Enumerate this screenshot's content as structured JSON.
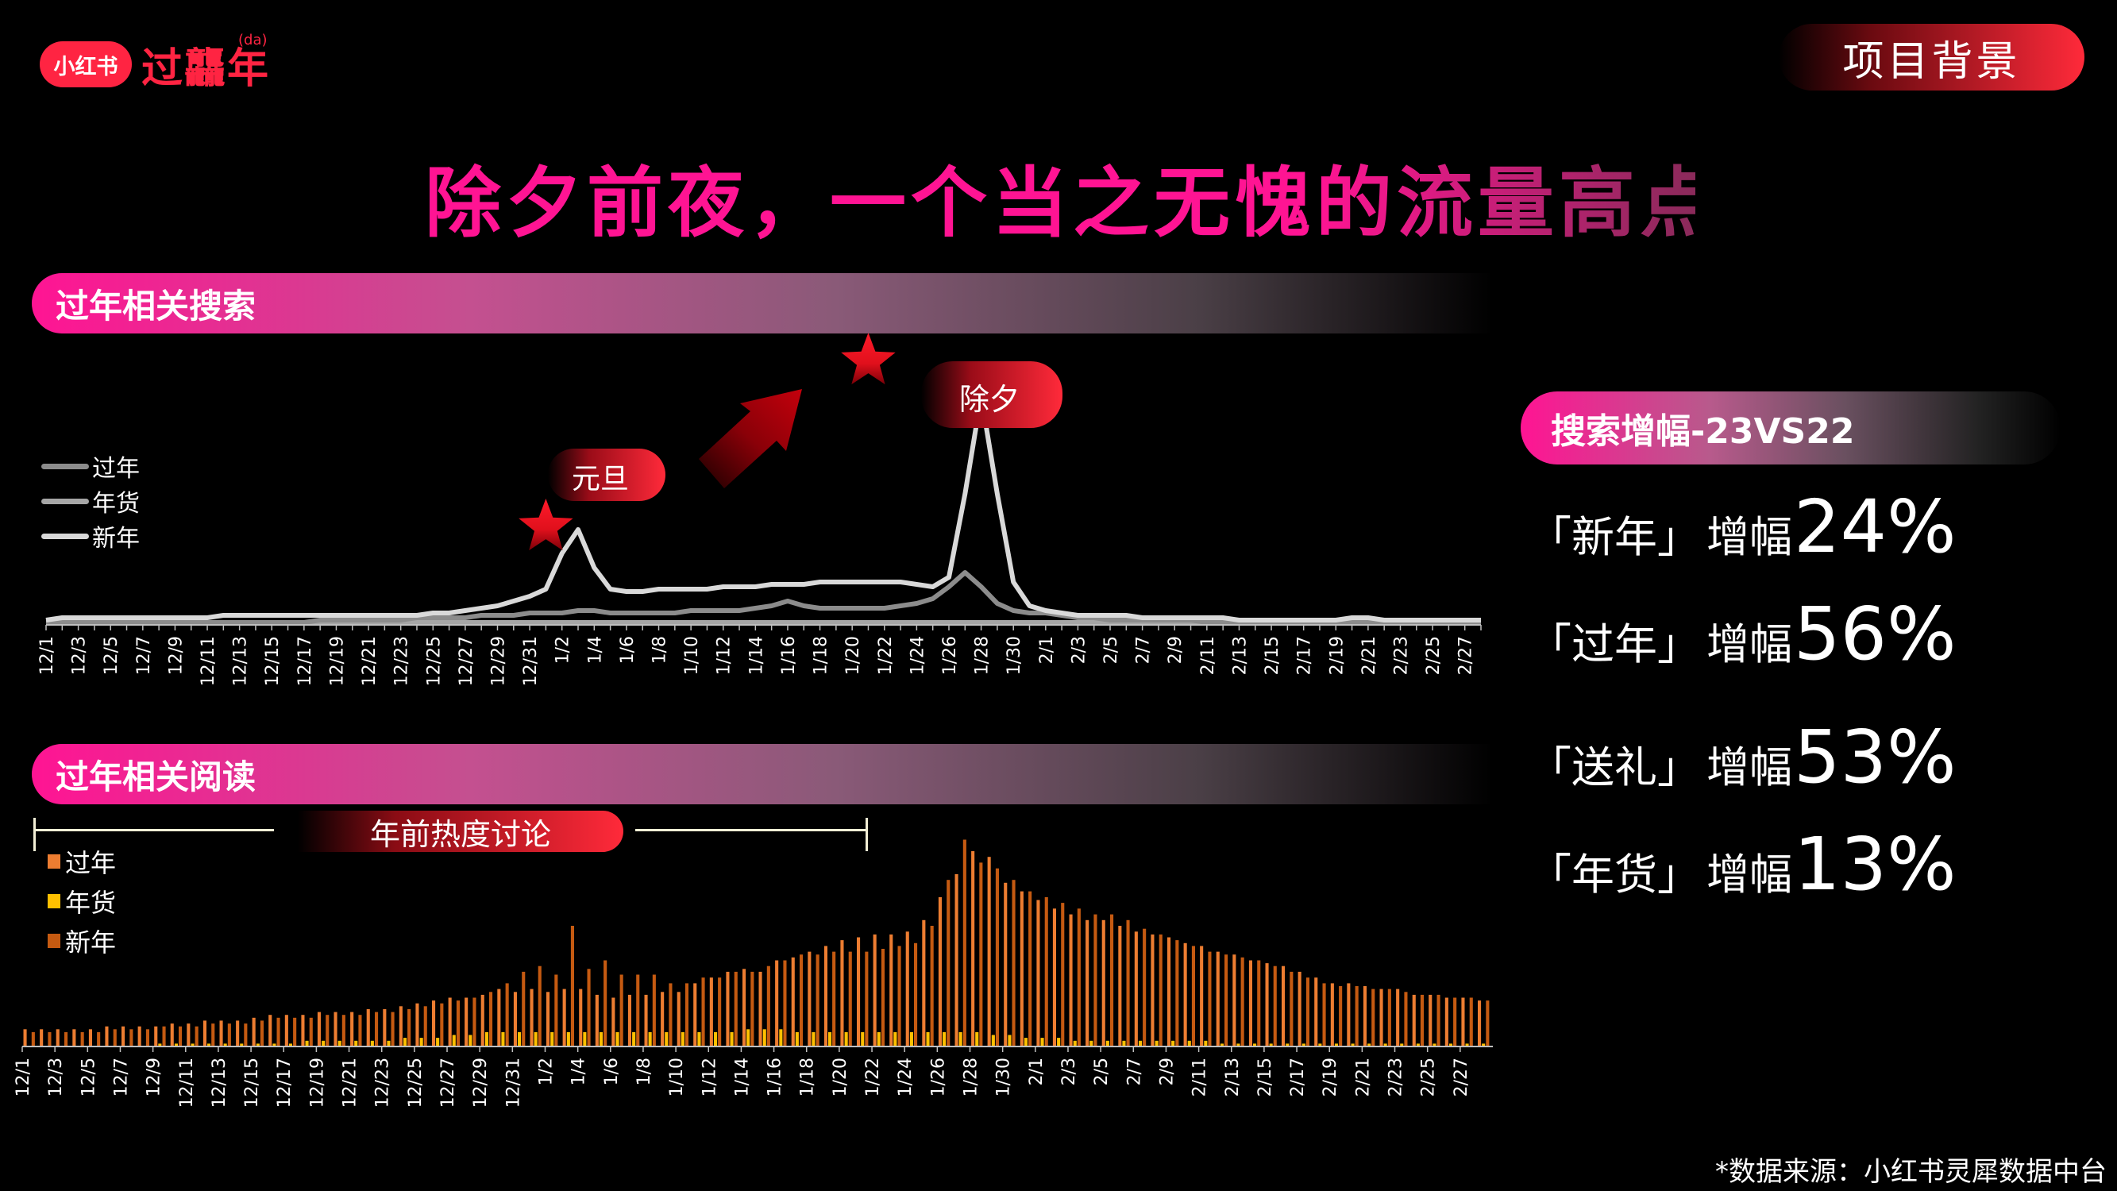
{
  "brand": {
    "logo_label": "小红书",
    "campaign_title": "过龘年",
    "campaign_sup": "(da)"
  },
  "section_tag": "项目背景",
  "page_title": "除夕前夜，一个当之无愧的流量高点",
  "search_section": {
    "heading": "过年相关搜索",
    "legend": [
      {
        "label": "过年",
        "color": "#8c8c8c"
      },
      {
        "label": "年货",
        "color": "#a6a6a6"
      },
      {
        "label": "新年",
        "color": "#d9d9d9"
      }
    ],
    "annotations": [
      {
        "label": "元旦",
        "star_at": "1/1"
      },
      {
        "label": "除夕",
        "star_at": "1/21"
      }
    ]
  },
  "reading_section": {
    "heading": "过年相关阅读",
    "bracket_label": "年前热度讨论",
    "legend": [
      {
        "label": "过年",
        "color": "#ed7d31"
      },
      {
        "label": "年货",
        "color": "#ffc000"
      },
      {
        "label": "新年",
        "color": "#c55a11"
      }
    ]
  },
  "stats": {
    "heading": "搜索增幅-23VS22",
    "keyword_suffix": "增幅",
    "rows": [
      {
        "label": "「新年」",
        "value": "24%"
      },
      {
        "label": "「过年」",
        "value": "56%"
      },
      {
        "label": "「送礼」",
        "value": "53%"
      },
      {
        "label": "「年货」",
        "value": "13%"
      }
    ]
  },
  "source_note": "*数据来源：小红书灵犀数据中台",
  "chart_data": [
    {
      "type": "line",
      "title": "过年相关搜索",
      "xlabel": "",
      "ylabel": "",
      "grid": false,
      "legend_position": "left",
      "x_tick_labels": [
        "12/1",
        "12/3",
        "12/5",
        "12/7",
        "12/9",
        "12/11",
        "12/13",
        "12/15",
        "12/17",
        "12/19",
        "12/21",
        "12/23",
        "12/25",
        "12/27",
        "12/29",
        "12/31",
        "1/2",
        "1/4",
        "1/6",
        "1/8",
        "1/10",
        "1/12",
        "1/14",
        "1/16",
        "1/18",
        "1/20",
        "1/22",
        "1/24",
        "1/26",
        "1/28",
        "1/30",
        "2/1",
        "2/3",
        "2/5",
        "2/7",
        "2/9",
        "2/11",
        "2/13",
        "2/15",
        "2/17",
        "2/19",
        "2/21",
        "2/23",
        "2/25",
        "2/27"
      ],
      "x_start": "12/1",
      "x_end": "2/28",
      "num_points": 90,
      "ylim": [
        0,
        100
      ],
      "series": [
        {
          "name": "新年",
          "color": "#d9d9d9",
          "values": [
            2,
            3,
            3,
            3,
            3,
            3,
            3,
            3,
            3,
            3,
            3,
            4,
            4,
            4,
            4,
            4,
            4,
            4,
            4,
            4,
            4,
            4,
            4,
            4,
            5,
            5,
            6,
            7,
            8,
            10,
            12,
            15,
            30,
            40,
            24,
            15,
            14,
            14,
            15,
            15,
            15,
            15,
            16,
            16,
            16,
            17,
            17,
            17,
            18,
            18,
            18,
            18,
            18,
            18,
            17,
            16,
            20,
            55,
            96,
            55,
            18,
            8,
            6,
            5,
            4,
            4,
            4,
            4,
            3,
            3,
            3,
            3,
            3,
            3,
            2,
            2,
            2,
            2,
            2,
            2,
            2,
            3,
            3,
            2,
            2,
            2,
            2,
            2,
            2,
            2
          ]
        },
        {
          "name": "过年",
          "color": "#8c8c8c",
          "values": [
            1,
            1,
            1,
            1,
            1,
            1,
            1,
            1,
            1,
            1,
            1,
            1,
            1,
            1,
            1,
            1,
            1,
            2,
            2,
            2,
            2,
            2,
            2,
            3,
            3,
            3,
            3,
            4,
            4,
            4,
            5,
            5,
            5,
            6,
            6,
            5,
            5,
            5,
            5,
            5,
            6,
            6,
            6,
            6,
            7,
            8,
            10,
            8,
            7,
            7,
            7,
            7,
            7,
            8,
            9,
            11,
            16,
            22,
            16,
            9,
            6,
            5,
            5,
            4,
            3,
            3,
            2,
            2,
            2,
            2,
            2,
            2,
            1,
            1,
            1,
            1,
            1,
            1,
            1,
            1,
            1,
            1,
            1,
            1,
            1,
            1,
            1,
            1,
            1,
            1
          ]
        },
        {
          "name": "年货",
          "color": "#a6a6a6",
          "values": [
            1,
            1,
            1,
            1,
            1,
            1,
            1,
            1,
            1,
            1,
            1,
            1,
            1,
            1,
            1,
            1,
            1,
            1,
            1,
            1,
            1,
            1,
            1,
            1,
            1,
            1,
            1,
            1,
            1,
            1,
            1,
            1,
            1,
            1,
            1,
            1,
            1,
            1,
            1,
            1,
            1,
            1,
            1,
            1,
            1,
            1,
            1,
            1,
            1,
            1,
            1,
            1,
            1,
            1,
            1,
            1,
            1,
            1,
            1,
            1,
            1,
            1,
            1,
            1,
            1,
            1,
            1,
            1,
            1,
            1,
            1,
            1,
            1,
            1,
            1,
            1,
            1,
            1,
            1,
            1,
            1,
            1,
            1,
            1,
            1,
            1,
            1,
            1,
            1,
            1
          ]
        }
      ]
    },
    {
      "type": "bar",
      "title": "过年相关阅读",
      "xlabel": "",
      "ylabel": "",
      "grid": false,
      "legend_position": "left",
      "x_tick_labels": [
        "12/1",
        "12/3",
        "12/5",
        "12/7",
        "12/9",
        "12/11",
        "12/13",
        "12/15",
        "12/17",
        "12/19",
        "12/21",
        "12/23",
        "12/25",
        "12/27",
        "12/29",
        "12/31",
        "1/2",
        "1/4",
        "1/6",
        "1/8",
        "1/10",
        "1/12",
        "1/14",
        "1/16",
        "1/18",
        "1/20",
        "1/22",
        "1/24",
        "1/26",
        "1/28",
        "1/30",
        "2/1",
        "2/3",
        "2/5",
        "2/7",
        "2/9",
        "2/11",
        "2/13",
        "2/15",
        "2/17",
        "2/19",
        "2/21",
        "2/23",
        "2/25",
        "2/27"
      ],
      "x_start": "12/1",
      "x_end": "2/28",
      "num_points": 90,
      "ylim": [
        0,
        100
      ],
      "annotation": {
        "label": "年前热度讨论",
        "from": "12/1",
        "to": "1/21"
      },
      "series": [
        {
          "name": "过年",
          "color": "#ed7d31",
          "values": [
            6,
            6,
            6,
            6,
            6,
            7,
            7,
            7,
            7,
            8,
            8,
            9,
            9,
            9,
            10,
            11,
            11,
            11,
            12,
            12,
            12,
            13,
            13,
            14,
            15,
            16,
            17,
            17,
            18,
            20,
            19,
            20,
            19,
            20,
            20,
            18,
            17,
            18,
            18,
            19,
            19,
            22,
            24,
            26,
            27,
            26,
            30,
            31,
            33,
            35,
            37,
            38,
            39,
            39,
            40,
            44,
            52,
            60,
            68,
            66,
            57,
            54,
            51,
            48,
            46,
            44,
            44,
            42,
            40,
            39,
            38,
            36,
            35,
            33,
            32,
            30,
            29,
            28,
            26,
            24,
            22,
            22,
            21,
            20,
            20,
            18,
            18,
            17,
            17,
            16
          ]
        },
        {
          "name": "年货",
          "color": "#ffc000",
          "values": [
            0,
            0,
            0,
            0,
            0,
            0,
            0,
            0,
            1,
            1,
            1,
            1,
            1,
            1,
            1,
            1,
            1,
            2,
            2,
            2,
            2,
            2,
            2,
            3,
            3,
            3,
            4,
            4,
            5,
            5,
            5,
            5,
            5,
            5,
            5,
            5,
            5,
            5,
            5,
            5,
            5,
            5,
            5,
            5,
            6,
            6,
            6,
            5,
            5,
            5,
            5,
            5,
            5,
            5,
            5,
            5,
            5,
            5,
            5,
            4,
            4,
            3,
            3,
            3,
            2,
            2,
            2,
            2,
            2,
            2,
            2,
            2,
            2,
            1,
            1,
            1,
            1,
            1,
            1,
            1,
            1,
            1,
            1,
            1,
            1,
            1,
            1,
            1,
            1,
            1
          ]
        },
        {
          "name": "新年",
          "color": "#c55a11",
          "values": [
            5,
            5,
            5,
            5,
            5,
            6,
            6,
            6,
            7,
            7,
            7,
            8,
            8,
            8,
            9,
            10,
            10,
            10,
            11,
            11,
            11,
            12,
            12,
            13,
            14,
            15,
            16,
            17,
            19,
            22,
            26,
            28,
            25,
            42,
            27,
            30,
            25,
            25,
            25,
            22,
            22,
            24,
            24,
            26,
            26,
            28,
            30,
            32,
            32,
            33,
            33,
            33,
            34,
            35,
            36,
            42,
            58,
            72,
            64,
            62,
            58,
            54,
            52,
            50,
            48,
            46,
            46,
            44,
            41,
            39,
            37,
            35,
            33,
            32,
            31,
            30,
            28,
            26,
            24,
            22,
            21,
            21,
            20,
            20,
            19,
            18,
            18,
            17,
            17,
            16
          ]
        }
      ]
    }
  ]
}
